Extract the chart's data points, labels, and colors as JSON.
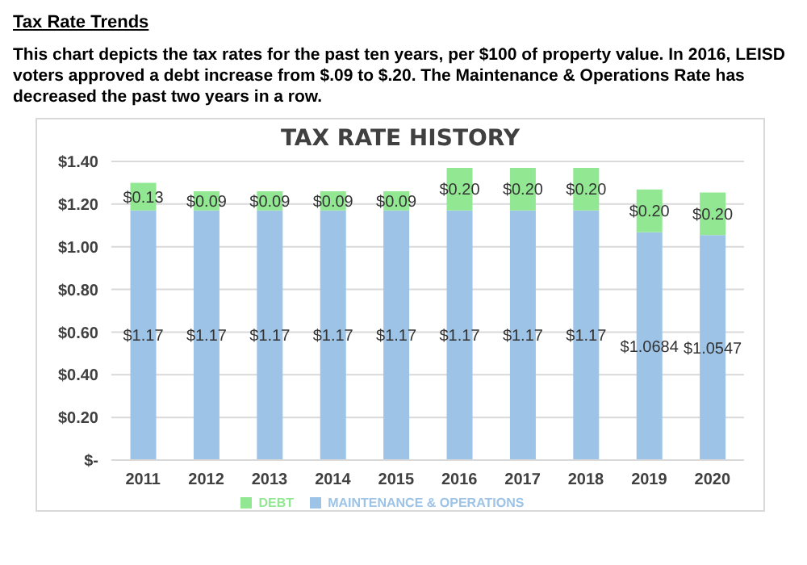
{
  "chart_data": {
    "type": "bar",
    "title": "TAX RATE HISTORY",
    "annotations": [
      "Tax Rate Trends",
      "This chart depicts the tax rates for the past ten years, per $100 of property value. In 2016, LEISD voters approved a debt increase from $.09 to $.20.  The Maintenance & Operations Rate has decreased the past two years in a row."
    ],
    "categories": [
      "2011",
      "2012",
      "2013",
      "2014",
      "2015",
      "2016",
      "2017",
      "2018",
      "2019",
      "2020"
    ],
    "stacked": true,
    "series": [
      {
        "name": "MAINTENANCE & OPERATIONS",
        "color": "#9dc3e6",
        "values": [
          1.17,
          1.17,
          1.17,
          1.17,
          1.17,
          1.17,
          1.17,
          1.17,
          1.0684,
          1.0547
        ],
        "value_labels": [
          "$1.17",
          "$1.17",
          "$1.17",
          "$1.17",
          "$1.17",
          "$1.17",
          "$1.17",
          "$1.17",
          "$1.0684",
          "$1.0547"
        ]
      },
      {
        "name": "DEBT",
        "color": "#92e892",
        "values": [
          0.13,
          0.09,
          0.09,
          0.09,
          0.09,
          0.2,
          0.2,
          0.2,
          0.2,
          0.2
        ],
        "value_labels": [
          "$0.13",
          "$0.09",
          "$0.09",
          "$0.09",
          "$0.09",
          "$0.20",
          "$0.20",
          "$0.20",
          "$0.20",
          "$0.20"
        ]
      }
    ],
    "ylim": [
      0,
      1.4
    ],
    "yticks": [
      {
        "value": 0,
        "label": "$-"
      },
      {
        "value": 0.2,
        "label": "$0.20"
      },
      {
        "value": 0.4,
        "label": "$0.40"
      },
      {
        "value": 0.6,
        "label": "$0.60"
      },
      {
        "value": 0.8,
        "label": "$0.80"
      },
      {
        "value": 1,
        "label": "$1.00"
      },
      {
        "value": 1.2,
        "label": "$1.20"
      },
      {
        "value": 1.4,
        "label": "$1.40"
      }
    ],
    "grid": "y",
    "legend": "bottom"
  }
}
